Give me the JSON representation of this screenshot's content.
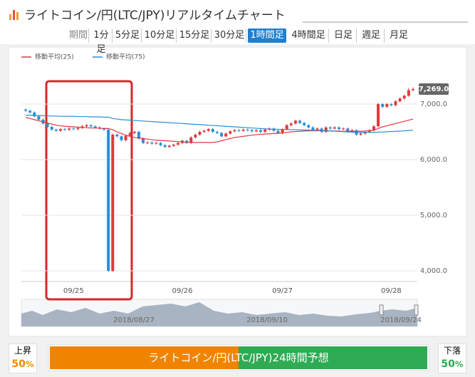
{
  "header": {
    "title": "ライトコイン/円(LTC/JPY)リアルタイムチャート"
  },
  "tabs": {
    "label": "期間",
    "items": [
      "1分足",
      "5分足",
      "10分足",
      "15分足",
      "30分足",
      "1時間足",
      "4時間足",
      "日足",
      "週足",
      "月足"
    ],
    "active": 5
  },
  "chart_data": {
    "type": "candlestick",
    "categories": [
      null,
      null,
      null,
      null,
      null,
      null,
      null,
      null,
      null,
      null,
      null,
      "09/25",
      null,
      null,
      null,
      null,
      null,
      null,
      null,
      null,
      null,
      null,
      null,
      null,
      null,
      null,
      null,
      null,
      null,
      null,
      null,
      null,
      null,
      null,
      null,
      null,
      "09/26",
      null,
      null,
      null,
      null,
      null,
      null,
      null,
      null,
      null,
      null,
      null,
      null,
      null,
      null,
      null,
      null,
      null,
      null,
      null,
      null,
      null,
      null,
      "09/27",
      null,
      null,
      null,
      null,
      null,
      null,
      null,
      null,
      null,
      null,
      null,
      null,
      null,
      null,
      null,
      null,
      null,
      null,
      null,
      null,
      null,
      null,
      null,
      null,
      "09/28",
      null,
      null,
      null,
      null,
      null
    ],
    "open": [
      6900,
      6880,
      6850,
      6780,
      6720,
      6650,
      6590,
      6540,
      6520,
      6550,
      6540,
      6560,
      6550,
      6570,
      6600,
      6620,
      6600,
      6580,
      6560,
      6540,
      4000,
      6450,
      6420,
      6350,
      6430,
      6480,
      6500,
      6380,
      6300,
      6310,
      6290,
      6300,
      6260,
      6230,
      6250,
      6270,
      6300,
      6340,
      6300,
      6400,
      6450,
      6500,
      6520,
      6550,
      6500,
      6480,
      6420,
      6470,
      6510,
      6530,
      6520,
      6540,
      6530,
      6510,
      6530,
      6500,
      6540,
      6560,
      6520,
      6480,
      6550,
      6620,
      6650,
      6700,
      6660,
      6620,
      6580,
      6540,
      6560,
      6500,
      6580,
      6560,
      6580,
      6550,
      6560,
      6500,
      6530,
      6450,
      6470,
      6500,
      6530,
      6600,
      7000,
      6950,
      7000,
      6980,
      7050,
      7100,
      7150,
      7250
    ],
    "high": [
      6920,
      6900,
      6870,
      6800,
      6740,
      6670,
      6610,
      6560,
      6570,
      6570,
      6580,
      6580,
      6590,
      6620,
      6640,
      6640,
      6620,
      6600,
      6580,
      6560,
      6470,
      6470,
      6440,
      6450,
      6500,
      6520,
      6520,
      6400,
      6330,
      6330,
      6320,
      6320,
      6280,
      6270,
      6290,
      6320,
      6360,
      6360,
      6420,
      6470,
      6520,
      6540,
      6570,
      6570,
      6520,
      6500,
      6490,
      6530,
      6550,
      6550,
      6560,
      6560,
      6550,
      6550,
      6550,
      6560,
      6580,
      6580,
      6540,
      6570,
      6640,
      6670,
      6720,
      6720,
      6680,
      6640,
      6600,
      6580,
      6580,
      6600,
      6600,
      6600,
      6600,
      6580,
      6580,
      6550,
      6550,
      6490,
      6520,
      6550,
      6620,
      7020,
      7020,
      7020,
      7020,
      7070,
      7120,
      7170,
      7290,
      7300
    ],
    "low": [
      6860,
      6830,
      6760,
      6700,
      6630,
      6570,
      6520,
      6500,
      6500,
      6520,
      6520,
      6530,
      6530,
      6550,
      6580,
      6580,
      6560,
      6540,
      6520,
      3980,
      3980,
      6400,
      6330,
      6330,
      6410,
      6460,
      6360,
      6280,
      6280,
      6270,
      6270,
      6240,
      6210,
      6210,
      6230,
      6250,
      6280,
      6280,
      6280,
      6380,
      6430,
      6480,
      6500,
      6480,
      6460,
      6400,
      6400,
      6450,
      6490,
      6500,
      6500,
      6510,
      6490,
      6490,
      6480,
      6480,
      6520,
      6500,
      6460,
      6460,
      6530,
      6600,
      6630,
      6640,
      6600,
      6560,
      6520,
      6520,
      6480,
      6480,
      6540,
      6540,
      6530,
      6530,
      6480,
      6480,
      6430,
      6430,
      6450,
      6480,
      6510,
      6580,
      6930,
      6930,
      6960,
      6960,
      7030,
      7080,
      7130,
      7230
    ],
    "close": [
      6880,
      6850,
      6780,
      6720,
      6650,
      6590,
      6540,
      6520,
      6550,
      6540,
      6560,
      6550,
      6570,
      6600,
      6620,
      6600,
      6580,
      6560,
      6540,
      4000,
      6450,
      6420,
      6350,
      6430,
      6480,
      6500,
      6380,
      6300,
      6310,
      6290,
      6300,
      6260,
      6230,
      6250,
      6270,
      6300,
      6340,
      6300,
      6400,
      6450,
      6500,
      6520,
      6550,
      6500,
      6480,
      6420,
      6470,
      6510,
      6530,
      6520,
      6540,
      6530,
      6510,
      6530,
      6500,
      6540,
      6560,
      6520,
      6480,
      6550,
      6620,
      6650,
      6700,
      6660,
      6620,
      6580,
      6540,
      6560,
      6500,
      6580,
      6560,
      6580,
      6550,
      6560,
      6500,
      6530,
      6450,
      6470,
      6500,
      6530,
      6600,
      7000,
      6950,
      7000,
      6980,
      7050,
      7100,
      7150,
      7250,
      7269
    ],
    "up_color": "#e0393e",
    "down_color": "#2a8fd4",
    "series": [
      {
        "name": "移動平均(25)",
        "color": "#e0393e",
        "values": [
          6760,
          6740,
          6720,
          6700,
          6680,
          6660,
          6640,
          6620,
          6610,
          6600,
          6595,
          6590,
          6585,
          6580,
          6575,
          6570,
          6570,
          6565,
          6560,
          6560,
          6540,
          6500,
          6470,
          6440,
          6420,
          6400,
          6390,
          6380,
          6370,
          6360,
          6350,
          6345,
          6340,
          6335,
          6330,
          6325,
          6320,
          6315,
          6310,
          6310,
          6310,
          6310,
          6310,
          6310,
          6320,
          6340,
          6360,
          6380,
          6400,
          6410,
          6420,
          6430,
          6440,
          6450,
          6455,
          6460,
          6465,
          6470,
          6475,
          6480,
          6490,
          6500,
          6505,
          6510,
          6515,
          6520,
          6520,
          6520,
          6520,
          6520,
          6520,
          6515,
          6515,
          6510,
          6510,
          6510,
          6510,
          6510,
          6515,
          6520,
          6530,
          6560,
          6590,
          6610,
          6630,
          6650,
          6670,
          6690,
          6710,
          6730
        ]
      },
      {
        "name": "移動平均(75)",
        "color": "#2a8fd4",
        "values": [
          6800,
          6800,
          6795,
          6795,
          6790,
          6790,
          6785,
          6785,
          6780,
          6780,
          6780,
          6780,
          6775,
          6775,
          6775,
          6770,
          6770,
          6770,
          6765,
          6765,
          6740,
          6730,
          6720,
          6715,
          6710,
          6705,
          6700,
          6695,
          6690,
          6685,
          6680,
          6675,
          6670,
          6665,
          6660,
          6655,
          6650,
          6645,
          6640,
          6635,
          6630,
          6625,
          6620,
          6615,
          6610,
          6605,
          6600,
          6595,
          6590,
          6585,
          6580,
          6575,
          6570,
          6565,
          6560,
          6555,
          6550,
          6548,
          6546,
          6544,
          6542,
          6540,
          6538,
          6536,
          6534,
          6532,
          6530,
          6528,
          6524,
          6520,
          6516,
          6512,
          6508,
          6504,
          6500,
          6496,
          6494,
          6492,
          6490,
          6490,
          6492,
          6495,
          6498,
          6502,
          6506,
          6510,
          6514,
          6518,
          6524,
          6530
        ]
      }
    ],
    "ylim": [
      3808,
      7744
    ],
    "yticks": [
      {
        "value": 4000,
        "label": "4,000.0"
      },
      {
        "value": 5000,
        "label": "5,000.0"
      },
      {
        "value": 6000,
        "label": "6,000.0"
      },
      {
        "value": 7000,
        "label": "7,000.0"
      }
    ],
    "last_label": "7,269.0",
    "grid": true,
    "navigator_dates": [
      "2018/08/27",
      "2018/09/10",
      "2018/09/24"
    ]
  },
  "forecast": {
    "title": "ライトコイン/円(LTC/JPY)24時間予想",
    "up": {
      "label": "上昇",
      "value": 50,
      "unit": "%"
    },
    "down": {
      "label": "下落",
      "value": 50,
      "unit": "%"
    }
  }
}
